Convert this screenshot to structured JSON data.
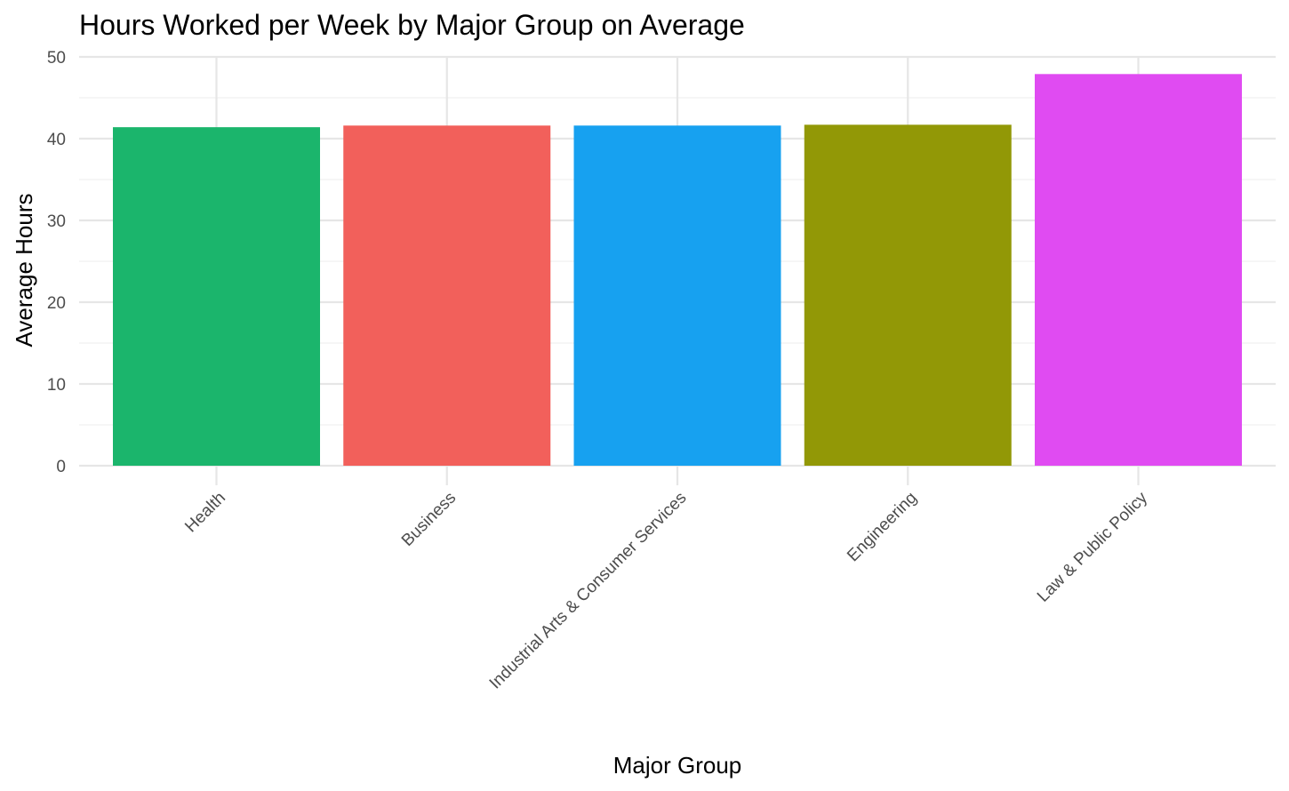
{
  "chart_data": {
    "type": "bar",
    "title": "Hours Worked per Week by Major Group on Average",
    "xlabel": "Major Group",
    "ylabel": "Average Hours",
    "categories": [
      "Health",
      "Business",
      "Industrial Arts & Consumer Services",
      "Engineering",
      "Law & Public Policy"
    ],
    "values": [
      41.4,
      41.6,
      41.6,
      41.7,
      47.9
    ],
    "colors": [
      "#1BB56C",
      "#F2605B",
      "#17A1F0",
      "#929806",
      "#E04BF2"
    ],
    "ylim": [
      0,
      50
    ],
    "yticks": [
      0,
      10,
      20,
      30,
      40,
      50
    ],
    "grid": true,
    "legend": "none"
  }
}
